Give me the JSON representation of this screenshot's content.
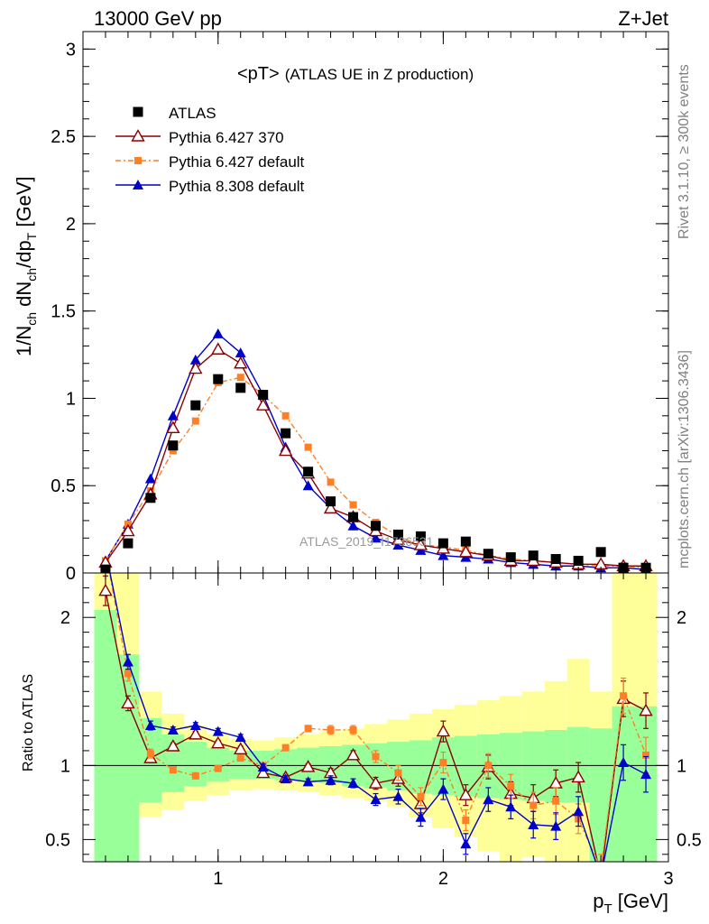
{
  "chart_data": {
    "type": "line",
    "header_left": "13000 GeV pp",
    "header_right": "Z+Jet",
    "title": "<pT>",
    "subtitle": "(ATLAS UE in Z production)",
    "ylabel_main": {
      "main": "1/N",
      "sub1": "ch",
      "mid": " dN",
      "sub2": "ch",
      "mid2": "/dp",
      "sub3": "T",
      "tail": " [GeV]"
    },
    "xlabel": {
      "main": "p",
      "sub": "T",
      "tail": " [GeV]"
    },
    "ylabel_ratio": "Ratio to ATLAS",
    "side_text_top": "Rivet 3.1.10, ≥ 300k events",
    "side_text_bottom": "mcplots.cern.ch [arXiv:1306.3436]",
    "watermark": "ATLAS_2019_I1736531",
    "xlim": [
      0.4,
      3.0
    ],
    "ylim_main": [
      0,
      3.1
    ],
    "ylim_ratio": [
      0.35,
      2.3
    ],
    "x_ticks": [
      1,
      2,
      3
    ],
    "x_tick_labels": [
      "1",
      "2",
      "3"
    ],
    "y_ticks_main": [
      0,
      0.5,
      1,
      1.5,
      2,
      2.5,
      3
    ],
    "y_tick_labels_main": [
      "0",
      "0.5",
      "1",
      "1.5",
      "2",
      "2.5",
      "3"
    ],
    "y_ticks_ratio": [
      0.5,
      1,
      2
    ],
    "y_tick_labels_ratio": [
      "0.5",
      "1",
      "2"
    ],
    "x": [
      0.5,
      0.6,
      0.7,
      0.8,
      0.9,
      1.0,
      1.1,
      1.2,
      1.3,
      1.4,
      1.5,
      1.6,
      1.7,
      1.8,
      1.9,
      2.0,
      2.1,
      2.2,
      2.3,
      2.4,
      2.5,
      2.6,
      2.7,
      2.8,
      2.9
    ],
    "series": [
      {
        "name": "ATLAS",
        "color": "#000000",
        "marker": "square",
        "values": [
          0.02,
          0.17,
          0.43,
          0.73,
          0.96,
          1.11,
          1.06,
          1.02,
          0.8,
          0.58,
          0.41,
          0.32,
          0.27,
          0.22,
          0.21,
          0.17,
          0.18,
          0.11,
          0.09,
          0.1,
          0.08,
          0.07,
          0.12,
          0.03,
          0.03
        ]
      },
      {
        "name": "Pythia 6.427 370",
        "color": "#8b0000",
        "marker": "open-triangle",
        "values": [
          0.06,
          0.24,
          0.45,
          0.83,
          1.17,
          1.28,
          1.2,
          0.96,
          0.7,
          0.57,
          0.37,
          0.32,
          0.24,
          0.19,
          0.16,
          0.14,
          0.12,
          0.1,
          0.07,
          0.07,
          0.06,
          0.05,
          0.05,
          0.04,
          0.04
        ]
      },
      {
        "name": "Pythia 6.427 default",
        "color": "#ff7f27",
        "marker": "filled-square-small",
        "dashed": true,
        "values": [
          0.07,
          0.28,
          0.47,
          0.7,
          0.87,
          1.09,
          1.12,
          1.02,
          0.9,
          0.72,
          0.52,
          0.39,
          0.29,
          0.21,
          0.16,
          0.15,
          0.13,
          0.1,
          0.08,
          0.07,
          0.06,
          0.05,
          0.04,
          0.04,
          0.03
        ]
      },
      {
        "name": "Pythia 8.308 default",
        "color": "#0000cc",
        "marker": "filled-triangle",
        "values": [
          0.07,
          0.28,
          0.54,
          0.9,
          1.22,
          1.37,
          1.26,
          1.02,
          0.72,
          0.5,
          0.37,
          0.27,
          0.2,
          0.16,
          0.13,
          0.1,
          0.09,
          0.08,
          0.06,
          0.05,
          0.04,
          0.04,
          0.03,
          0.03,
          0.02
        ]
      }
    ],
    "ratio_series": [
      {
        "name": "Pythia 6.427 370",
        "values": [
          2.18,
          1.42,
          1.05,
          1.13,
          1.21,
          1.15,
          1.11,
          0.95,
          0.92,
          0.99,
          0.95,
          1.07,
          0.88,
          0.91,
          0.74,
          1.23,
          0.8,
          0.99,
          0.81,
          0.78,
          0.88,
          0.92,
          0.25,
          1.45,
          1.37
        ],
        "errors": [
          0.1,
          0.05,
          0.03,
          0.02,
          0.02,
          0.02,
          0.02,
          0.02,
          0.02,
          0.02,
          0.03,
          0.03,
          0.04,
          0.05,
          0.06,
          0.07,
          0.07,
          0.08,
          0.08,
          0.09,
          0.09,
          0.1,
          0.1,
          0.12,
          0.12
        ]
      },
      {
        "name": "Pythia 6.427 default",
        "values": [
          2.45,
          1.62,
          1.08,
          0.97,
          0.93,
          0.98,
          1.05,
          1.0,
          1.12,
          1.25,
          1.24,
          1.24,
          1.06,
          0.95,
          0.79,
          1.02,
          0.63,
          1.0,
          0.86,
          0.73,
          0.76,
          0.64,
          0.3,
          1.47,
          1.07
        ],
        "errors": [
          0.1,
          0.05,
          0.03,
          0.02,
          0.02,
          0.02,
          0.02,
          0.02,
          0.02,
          0.02,
          0.03,
          0.03,
          0.04,
          0.05,
          0.06,
          0.07,
          0.07,
          0.08,
          0.08,
          0.09,
          0.09,
          0.1,
          0.1,
          0.12,
          0.12
        ]
      },
      {
        "name": "Pythia 8.308 default",
        "values": [
          2.45,
          1.7,
          1.27,
          1.24,
          1.27,
          1.23,
          1.19,
          0.99,
          0.91,
          0.89,
          0.9,
          0.88,
          0.77,
          0.79,
          0.65,
          0.84,
          0.47,
          0.77,
          0.72,
          0.6,
          0.59,
          0.69,
          0.25,
          1.02,
          0.94
        ],
        "errors": [
          0.1,
          0.05,
          0.03,
          0.02,
          0.02,
          0.02,
          0.02,
          0.02,
          0.02,
          0.02,
          0.03,
          0.03,
          0.04,
          0.05,
          0.06,
          0.07,
          0.07,
          0.08,
          0.08,
          0.09,
          0.09,
          0.1,
          0.1,
          0.12,
          0.12
        ]
      }
    ],
    "ratio_bands": {
      "inner_color": "#99ff99",
      "outer_color": "#ffff99",
      "inner_lo": [
        0.35,
        0.35,
        0.75,
        0.82,
        0.86,
        0.89,
        0.91,
        0.91,
        0.9,
        0.89,
        0.88,
        0.86,
        0.85,
        0.83,
        0.81,
        0.8,
        0.79,
        0.78,
        0.77,
        0.76,
        0.75,
        0.75,
        0.35,
        0.35,
        0.35
      ],
      "inner_hi": [
        2.05,
        1.75,
        1.32,
        1.21,
        1.16,
        1.12,
        1.1,
        1.1,
        1.11,
        1.12,
        1.13,
        1.14,
        1.15,
        1.16,
        1.17,
        1.19,
        1.2,
        1.21,
        1.22,
        1.23,
        1.24,
        1.26,
        1.25,
        1.4,
        1.4
      ],
      "outer_lo": [
        0.35,
        0.35,
        0.65,
        0.7,
        0.76,
        0.8,
        0.83,
        0.84,
        0.83,
        0.82,
        0.8,
        0.78,
        0.76,
        0.72,
        0.65,
        0.58,
        0.52,
        0.42,
        0.35,
        0.38,
        0.35,
        0.35,
        0.35,
        0.35,
        0.35
      ],
      "outer_hi": [
        2.3,
        2.3,
        1.5,
        1.35,
        1.27,
        1.21,
        1.18,
        1.17,
        1.19,
        1.21,
        1.23,
        1.25,
        1.28,
        1.31,
        1.35,
        1.38,
        1.41,
        1.44,
        1.47,
        1.5,
        1.57,
        1.72,
        1.5,
        2.3,
        2.3
      ]
    }
  }
}
